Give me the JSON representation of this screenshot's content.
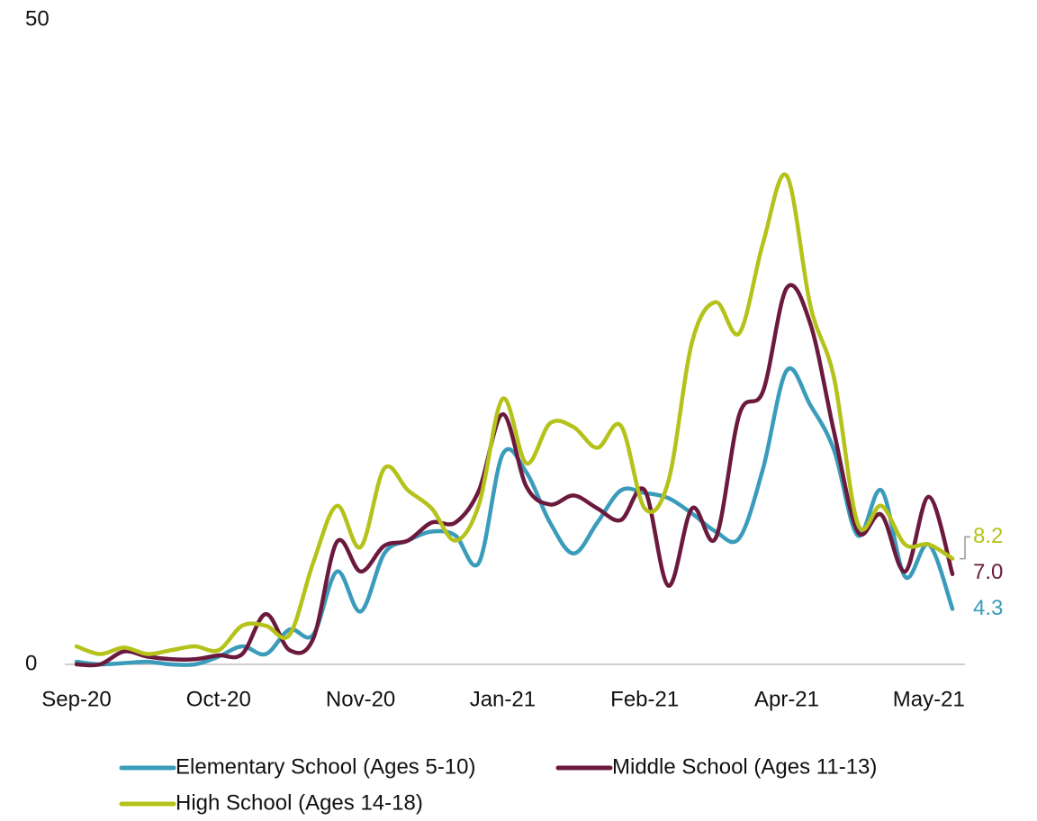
{
  "chart_data": {
    "type": "line",
    "categories": [
      "Sep-20",
      null,
      null,
      null,
      null,
      null,
      "Oct-20",
      null,
      null,
      null,
      null,
      null,
      "Nov-20",
      null,
      null,
      null,
      null,
      null,
      "Jan-21",
      null,
      null,
      null,
      null,
      null,
      "Feb-21",
      null,
      null,
      null,
      null,
      null,
      "Apr-21",
      null,
      null,
      null,
      null,
      null,
      "May-21",
      null
    ],
    "ylim": [
      0,
      50
    ],
    "yticks": [
      0,
      50
    ],
    "grid": false,
    "series": [
      {
        "name": "Elementary School (Ages 5-10)",
        "color": "#3a9cba",
        "values": [
          0.2,
          0,
          0.1,
          0.2,
          0,
          0,
          0.6,
          1.4,
          0.8,
          2.7,
          2.3,
          7.2,
          4.1,
          8.6,
          9.6,
          10.3,
          10.0,
          7.9,
          16.3,
          14.9,
          11.0,
          8.6,
          11.0,
          13.5,
          13.3,
          12.9,
          11.7,
          10.3,
          9.8,
          15.2,
          22.8,
          20.1,
          16.6,
          10.0,
          13.5,
          6.8,
          9.3,
          4.3
        ],
        "value_labels": [
          null,
          null,
          null,
          null,
          null,
          null,
          null,
          null,
          null,
          null,
          null,
          null,
          null,
          null,
          null,
          null,
          null,
          null,
          null,
          null,
          null,
          null,
          null,
          null,
          null,
          null,
          null,
          null,
          null,
          null,
          null,
          null,
          null,
          null,
          null,
          null,
          null,
          "4.3"
        ]
      },
      {
        "name": "Middle School (Ages 11-13)",
        "color": "#6b1a3d",
        "values": [
          0,
          0,
          1.0,
          0.6,
          0.4,
          0.4,
          0.7,
          0.8,
          3.9,
          1.1,
          2.0,
          9.5,
          7.2,
          9.2,
          9.6,
          11.0,
          11.0,
          13.5,
          19.4,
          13.8,
          12.4,
          13.1,
          12.1,
          11.2,
          13.5,
          6.1,
          12.1,
          9.8,
          19.4,
          21.2,
          29.2,
          26.4,
          18.0,
          10.3,
          11.6,
          7.2,
          13.0,
          7.0
        ],
        "value_labels": [
          null,
          null,
          null,
          null,
          null,
          null,
          null,
          null,
          null,
          null,
          null,
          null,
          null,
          null,
          null,
          null,
          null,
          null,
          null,
          null,
          null,
          null,
          null,
          null,
          null,
          null,
          null,
          null,
          null,
          null,
          null,
          null,
          null,
          null,
          null,
          null,
          null,
          "7.0"
        ]
      },
      {
        "name": "High School (Ages 14-18)",
        "color": "#b5c21a",
        "values": [
          1.4,
          0.8,
          1.3,
          0.8,
          1.1,
          1.4,
          1.1,
          3.0,
          3.0,
          2.3,
          7.9,
          12.3,
          9.1,
          15.2,
          13.5,
          12.1,
          9.6,
          12.4,
          20.6,
          15.6,
          18.7,
          18.4,
          16.8,
          18.5,
          12.1,
          14.2,
          25.0,
          28.1,
          25.7,
          32.7,
          37.9,
          27.8,
          22.2,
          10.9,
          12.3,
          9.3,
          9.3,
          8.2
        ],
        "value_labels": [
          null,
          null,
          null,
          null,
          null,
          null,
          null,
          null,
          null,
          null,
          null,
          null,
          null,
          null,
          null,
          null,
          null,
          null,
          null,
          null,
          null,
          null,
          null,
          null,
          null,
          null,
          null,
          null,
          null,
          null,
          null,
          null,
          null,
          null,
          null,
          null,
          null,
          "8.2"
        ]
      }
    ]
  }
}
